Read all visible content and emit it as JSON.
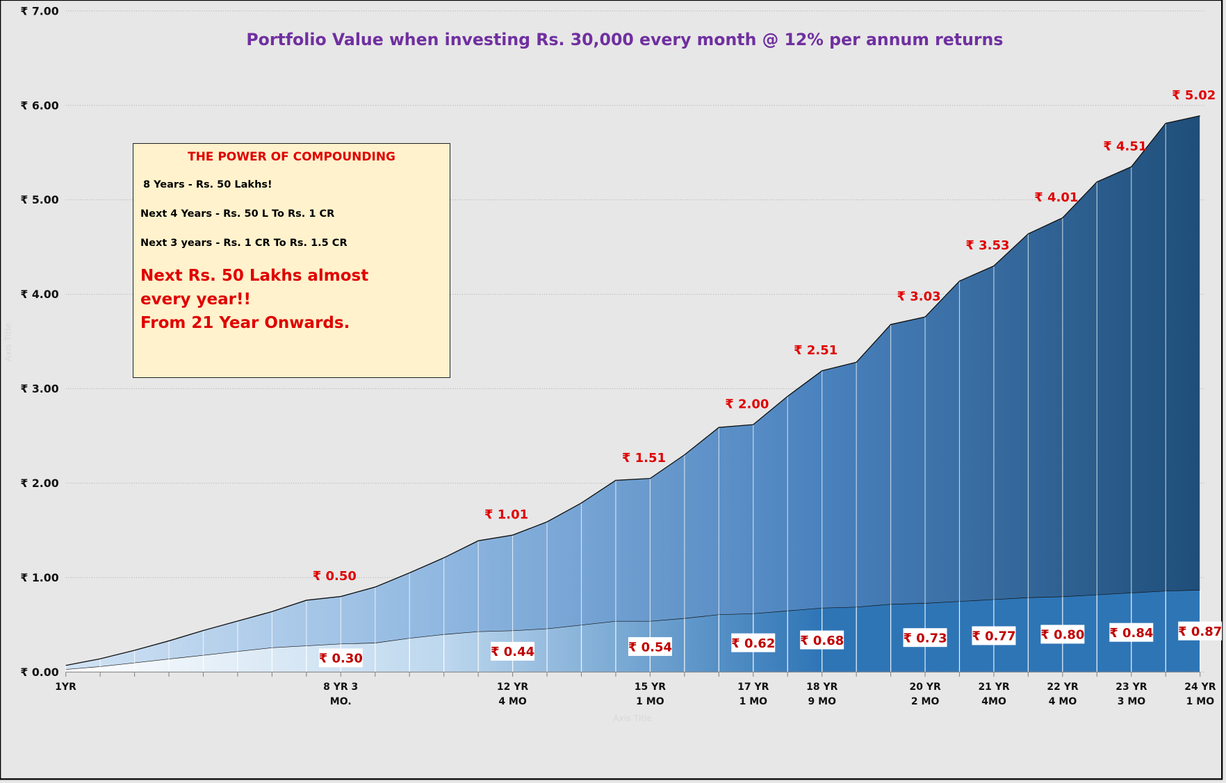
{
  "chart_data": {
    "type": "stacked_area",
    "subtitle": "Portfolio Value when investing Rs. 30,000 every month @ 12% per annum returns",
    "x_label": "Axis Title",
    "y_label": "Axis Title",
    "categories": [
      "1YR",
      null,
      null,
      null,
      null,
      null,
      null,
      null,
      "8 YR 3\nMO.",
      null,
      null,
      null,
      null,
      "12 YR\n4 MO",
      null,
      null,
      null,
      "15 YR\n1 MO",
      null,
      null,
      "17 YR\n1 MO",
      null,
      "18 YR\n9 MO",
      null,
      null,
      "20 YR\n2 MO",
      null,
      "21 YR\n4MO",
      null,
      "22 YR\n4 MO",
      null,
      "23 YR\n3 MO",
      null,
      "24 YR\n1 MO"
    ],
    "series": [
      {
        "gradient": [
          "#ffffff",
          "#bdd7ee",
          "#2e75b6",
          "#2e75b6"
        ],
        "values": [
          0.03,
          0.06,
          0.1,
          0.14,
          0.18,
          0.22,
          0.26,
          0.28,
          0.3,
          0.31,
          0.36,
          0.4,
          0.43,
          0.44,
          0.46,
          0.5,
          0.54,
          0.54,
          0.57,
          0.61,
          0.62,
          0.65,
          0.68,
          0.69,
          0.72,
          0.73,
          0.75,
          0.77,
          0.79,
          0.8,
          0.82,
          0.84,
          0.86,
          0.87
        ],
        "value_labels": [
          null,
          null,
          null,
          null,
          null,
          null,
          null,
          null,
          "₹ 0.30",
          null,
          null,
          null,
          null,
          "₹ 0.44",
          null,
          null,
          null,
          "₹ 0.54",
          null,
          null,
          "₹ 0.62",
          null,
          "₹ 0.68",
          null,
          null,
          "₹ 0.73",
          null,
          "₹ 0.77",
          null,
          "₹ 0.80",
          null,
          "₹ 0.84",
          null,
          "₹ 0.87"
        ]
      },
      {
        "gradient": [
          "#d2e3f4",
          "#8fb7e0",
          "#4a82be",
          "#1f4e79"
        ],
        "values": [
          0.04,
          0.08,
          0.13,
          0.19,
          0.26,
          0.32,
          0.38,
          0.48,
          0.5,
          0.59,
          0.69,
          0.81,
          0.96,
          1.01,
          1.13,
          1.29,
          1.49,
          1.51,
          1.73,
          1.98,
          2.0,
          2.27,
          2.51,
          2.59,
          2.96,
          3.03,
          3.39,
          3.53,
          3.85,
          4.01,
          4.37,
          4.51,
          4.95,
          5.02
        ],
        "value_labels": [
          null,
          null,
          null,
          null,
          null,
          null,
          null,
          null,
          "₹ 0.50",
          null,
          null,
          null,
          null,
          "₹ 1.01",
          null,
          null,
          null,
          "₹ 1.51",
          null,
          null,
          "₹ 2.00",
          null,
          "₹ 2.51",
          null,
          null,
          "₹ 3.03",
          null,
          "₹ 3.53",
          null,
          "₹ 4.01",
          null,
          "₹ 4.51",
          null,
          "₹ 5.02"
        ]
      }
    ],
    "ylim": [
      0,
      7
    ],
    "yticks": [
      {
        "value": 0,
        "label": "₹ 0.00"
      },
      {
        "value": 1,
        "label": "₹ 1.00"
      },
      {
        "value": 2,
        "label": "₹ 2.00"
      },
      {
        "value": 3,
        "label": "₹ 3.00"
      },
      {
        "value": 4,
        "label": "₹ 4.00"
      },
      {
        "value": 5,
        "label": "₹ 5.00"
      },
      {
        "value": 6,
        "label": "₹ 6.00"
      },
      {
        "value": 7,
        "label": "₹ 7.00"
      }
    ],
    "grid": true,
    "annotation": {
      "title": "THE POWER OF COMPOUNDING",
      "lines": [
        "8 Years - Rs. 50 Lakhs!",
        "Next 4 Years -  Rs. 50 L To Rs. 1 CR",
        "Next 3 years - Rs. 1 CR To Rs. 1.5 CR"
      ],
      "highlight": [
        "Next Rs. 50 Lakhs almost every year!!",
        "From 21 Year Onwards."
      ]
    }
  }
}
